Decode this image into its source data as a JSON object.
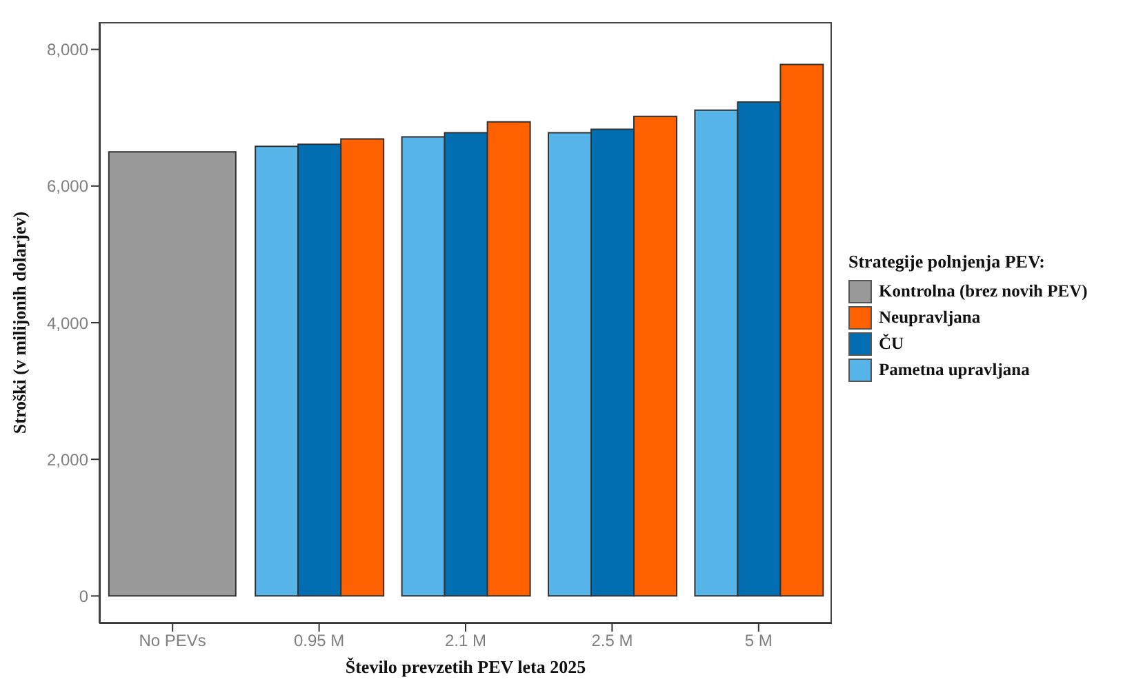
{
  "chart_data": {
    "type": "bar",
    "xlabel": "Število prevzetih PEV leta 2025",
    "ylabel": "Stroški (v milijonih dolarjev)",
    "legend_title": "Strategije polnjenja PEV:",
    "categories": [
      "No PEVs",
      "0.95 M",
      "2.1 M",
      "2.5 M",
      "5 M"
    ],
    "series": [
      {
        "name": "Kontrolna (brez novih PEV)",
        "color": "#999999",
        "values": [
          6500,
          null,
          null,
          null,
          null
        ]
      },
      {
        "name": "Neupravljana",
        "color": "#ff6000",
        "values": [
          null,
          6690,
          6940,
          7020,
          7780
        ]
      },
      {
        "name": "ČU",
        "color": "#006eb0",
        "values": [
          null,
          6610,
          6780,
          6830,
          7230
        ]
      },
      {
        "name": "Pametna upravljana",
        "color": "#56b4e9",
        "values": [
          null,
          6580,
          6720,
          6780,
          7110
        ]
      }
    ],
    "ylim": [
      -400,
      8400
    ],
    "yticks": [
      0,
      {
        "value": 2000,
        "label": "2,000"
      },
      {
        "value": 4000,
        "label": "4,000"
      },
      {
        "value": 6000,
        "label": "6,000"
      },
      {
        "value": 8000,
        "label": "8,000"
      }
    ],
    "grid": false,
    "legend": "right"
  }
}
